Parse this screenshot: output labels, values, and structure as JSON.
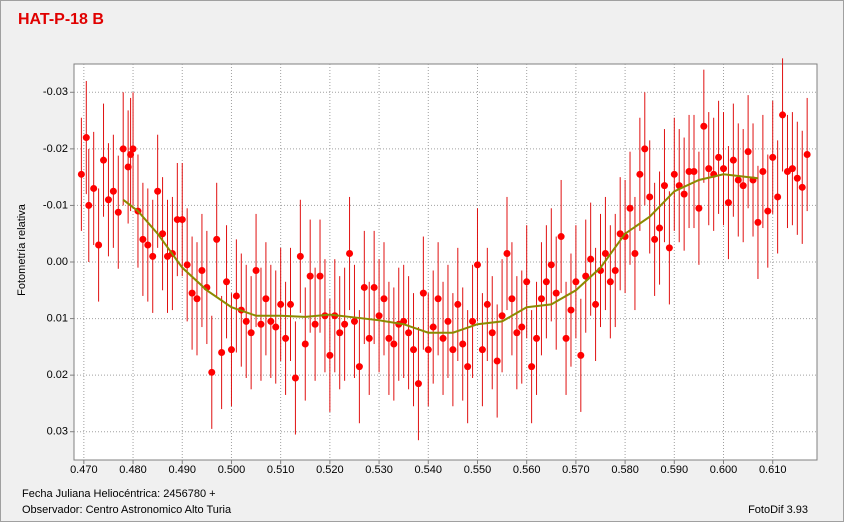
{
  "chart_data": {
    "type": "scatter",
    "title": "HAT-P-18 B",
    "ylabel": "Fotometría relativa",
    "xlabel": "Fecha Juliana Heliocéntrica: 2456780 +",
    "observer": "Observador: Centro Astronomico Alto Turia",
    "software": "FotoDif 3.93",
    "xlim": [
      0.468,
      0.619
    ],
    "ylim": [
      -0.035,
      0.035
    ],
    "y_inverted": true,
    "grid": true,
    "xticks": [
      {
        "value": 0.47,
        "label": "0.470"
      },
      {
        "value": 0.48,
        "label": "0.480"
      },
      {
        "value": 0.49,
        "label": "0.490"
      },
      {
        "value": 0.5,
        "label": "0.500"
      },
      {
        "value": 0.51,
        "label": "0.510"
      },
      {
        "value": 0.52,
        "label": "0.520"
      },
      {
        "value": 0.53,
        "label": "0.530"
      },
      {
        "value": 0.54,
        "label": "0.540"
      },
      {
        "value": 0.55,
        "label": "0.550"
      },
      {
        "value": 0.56,
        "label": "0.560"
      },
      {
        "value": 0.57,
        "label": "0.570"
      },
      {
        "value": 0.58,
        "label": "0.580"
      },
      {
        "value": 0.59,
        "label": "0.590"
      },
      {
        "value": 0.6,
        "label": "0.600"
      },
      {
        "value": 0.61,
        "label": "0.610"
      }
    ],
    "yticks": [
      -0.03,
      -0.02,
      -0.01,
      {
        "value": 0,
        "label": "0.00"
      },
      0.01,
      0.02,
      0.03
    ],
    "points": {
      "color": "#ff0000",
      "error_color": "#e01010",
      "error": 0.01,
      "x": [
        0.4695,
        0.4705,
        0.471,
        0.472,
        0.473,
        0.474,
        0.475,
        0.476,
        0.477,
        0.478,
        0.479,
        0.4795,
        0.48,
        0.481,
        0.482,
        0.483,
        0.484,
        0.485,
        0.486,
        0.487,
        0.488,
        0.489,
        0.49,
        0.491,
        0.492,
        0.493,
        0.494,
        0.495,
        0.496,
        0.497,
        0.498,
        0.499,
        0.5,
        0.501,
        0.502,
        0.503,
        0.504,
        0.505,
        0.506,
        0.507,
        0.508,
        0.509,
        0.51,
        0.511,
        0.512,
        0.513,
        0.514,
        0.515,
        0.516,
        0.517,
        0.518,
        0.519,
        0.52,
        0.521,
        0.522,
        0.523,
        0.524,
        0.525,
        0.526,
        0.527,
        0.528,
        0.529,
        0.53,
        0.531,
        0.532,
        0.533,
        0.534,
        0.535,
        0.536,
        0.537,
        0.538,
        0.539,
        0.54,
        0.541,
        0.542,
        0.543,
        0.544,
        0.545,
        0.546,
        0.547,
        0.548,
        0.549,
        0.55,
        0.551,
        0.552,
        0.553,
        0.554,
        0.555,
        0.556,
        0.557,
        0.558,
        0.559,
        0.56,
        0.561,
        0.562,
        0.563,
        0.564,
        0.565,
        0.566,
        0.567,
        0.568,
        0.569,
        0.57,
        0.571,
        0.572,
        0.573,
        0.574,
        0.575,
        0.576,
        0.577,
        0.578,
        0.579,
        0.58,
        0.581,
        0.582,
        0.583,
        0.584,
        0.585,
        0.586,
        0.587,
        0.588,
        0.589,
        0.59,
        0.591,
        0.592,
        0.593,
        0.594,
        0.595,
        0.596,
        0.597,
        0.598,
        0.599,
        0.6,
        0.601,
        0.602,
        0.603,
        0.604,
        0.605,
        0.606,
        0.607,
        0.608,
        0.609,
        0.61,
        0.611,
        0.612,
        0.613,
        0.614,
        0.615,
        0.616,
        0.617
      ],
      "values": [
        -0.0155,
        -0.022,
        -0.01,
        -0.013,
        -0.003,
        -0.018,
        -0.011,
        -0.0125,
        -0.0088,
        -0.02,
        -0.0168,
        -0.019,
        -0.02,
        -0.009,
        -0.004,
        -0.003,
        -0.001,
        -0.0125,
        -0.005,
        -0.001,
        -0.0015,
        -0.0075,
        -0.0075,
        0.0005,
        0.0055,
        0.0065,
        0.0015,
        0.0045,
        0.0195,
        -0.004,
        0.016,
        0.0035,
        0.0155,
        0.006,
        0.0085,
        0.0105,
        0.0125,
        0.0015,
        0.011,
        0.0065,
        0.0105,
        0.0115,
        0.0075,
        0.0135,
        0.0075,
        0.0205,
        -0.001,
        0.0145,
        0.0025,
        0.011,
        0.0025,
        0.0095,
        0.0165,
        0.0095,
        0.0125,
        0.011,
        -0.0015,
        0.0105,
        0.0185,
        0.0045,
        0.0135,
        0.0045,
        0.0095,
        0.0065,
        0.0135,
        0.0145,
        0.011,
        0.0105,
        0.0125,
        0.0155,
        0.0215,
        0.0055,
        0.0155,
        0.0115,
        0.0065,
        0.0135,
        0.0105,
        0.0155,
        0.0075,
        0.0145,
        0.0185,
        0.0105,
        0.0005,
        0.0155,
        0.0075,
        0.0125,
        0.0175,
        0.0095,
        -0.0015,
        0.0065,
        0.0125,
        0.0115,
        0.0035,
        0.0185,
        0.0135,
        0.0065,
        0.0035,
        0.0005,
        0.0055,
        -0.0045,
        0.0135,
        0.0085,
        0.0035,
        0.0165,
        0.0025,
        -0.0005,
        0.0075,
        0.0015,
        -0.0015,
        0.0035,
        0.0015,
        -0.005,
        -0.0045,
        -0.0095,
        -0.0015,
        -0.0155,
        -0.02,
        -0.0115,
        -0.004,
        -0.006,
        -0.0135,
        -0.0025,
        -0.0155,
        -0.0135,
        -0.012,
        -0.016,
        -0.016,
        -0.0095,
        -0.024,
        -0.0165,
        -0.0155,
        -0.0185,
        -0.0165,
        -0.0105,
        -0.018,
        -0.0145,
        -0.0135,
        -0.0195,
        -0.0145,
        -0.007,
        -0.016,
        -0.009,
        -0.0185,
        -0.0115,
        -0.026,
        -0.016,
        -0.0165,
        -0.0148,
        -0.0132,
        -0.019
      ]
    },
    "trend": {
      "color": "#8b8a00",
      "x": [
        0.478,
        0.481,
        0.485,
        0.49,
        0.495,
        0.5,
        0.505,
        0.51,
        0.515,
        0.52,
        0.525,
        0.53,
        0.535,
        0.54,
        0.545,
        0.55,
        0.555,
        0.56,
        0.565,
        0.57,
        0.575,
        0.58,
        0.585,
        0.59,
        0.595,
        0.6,
        0.605,
        0.607
      ],
      "values": [
        -0.011,
        -0.009,
        -0.005,
        0.001,
        0.005,
        0.008,
        0.0095,
        0.0095,
        0.0097,
        0.0093,
        0.0098,
        0.0103,
        0.011,
        0.0125,
        0.0125,
        0.011,
        0.0105,
        0.008,
        0.0075,
        0.005,
        0.001,
        -0.005,
        -0.008,
        -0.0125,
        -0.0145,
        -0.0155,
        -0.015,
        -0.0148
      ]
    }
  }
}
